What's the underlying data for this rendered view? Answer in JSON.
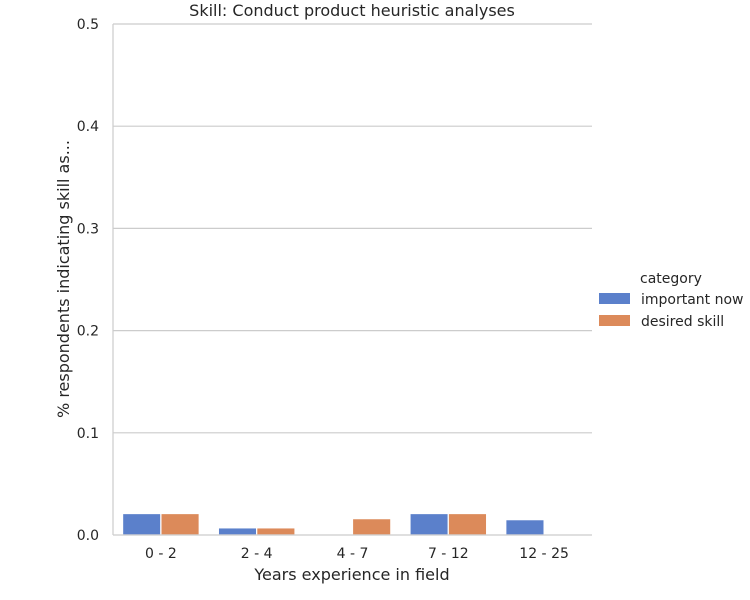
{
  "chart_data": {
    "type": "bar",
    "title": "Skill: Conduct product heuristic analyses",
    "xlabel": "Years experience in field",
    "ylabel": "% respondents indicating skill as...",
    "categories": [
      "0 - 2",
      "2 - 4",
      "4 - 7",
      "7 - 12",
      "12 - 25"
    ],
    "series": [
      {
        "name": "important now",
        "color": "#5b80cb",
        "values": [
          0.021,
          0.007,
          0.0,
          0.021,
          0.015
        ]
      },
      {
        "name": "desired skill",
        "color": "#dc8a5a",
        "values": [
          0.021,
          0.007,
          0.016,
          0.021,
          0.0
        ]
      }
    ],
    "ylim": [
      0,
      0.5
    ],
    "yticks": [
      "0.0",
      "0.1",
      "0.2",
      "0.3",
      "0.4",
      "0.5"
    ],
    "grid": true,
    "legend": {
      "title": "category",
      "placement": "right"
    }
  }
}
